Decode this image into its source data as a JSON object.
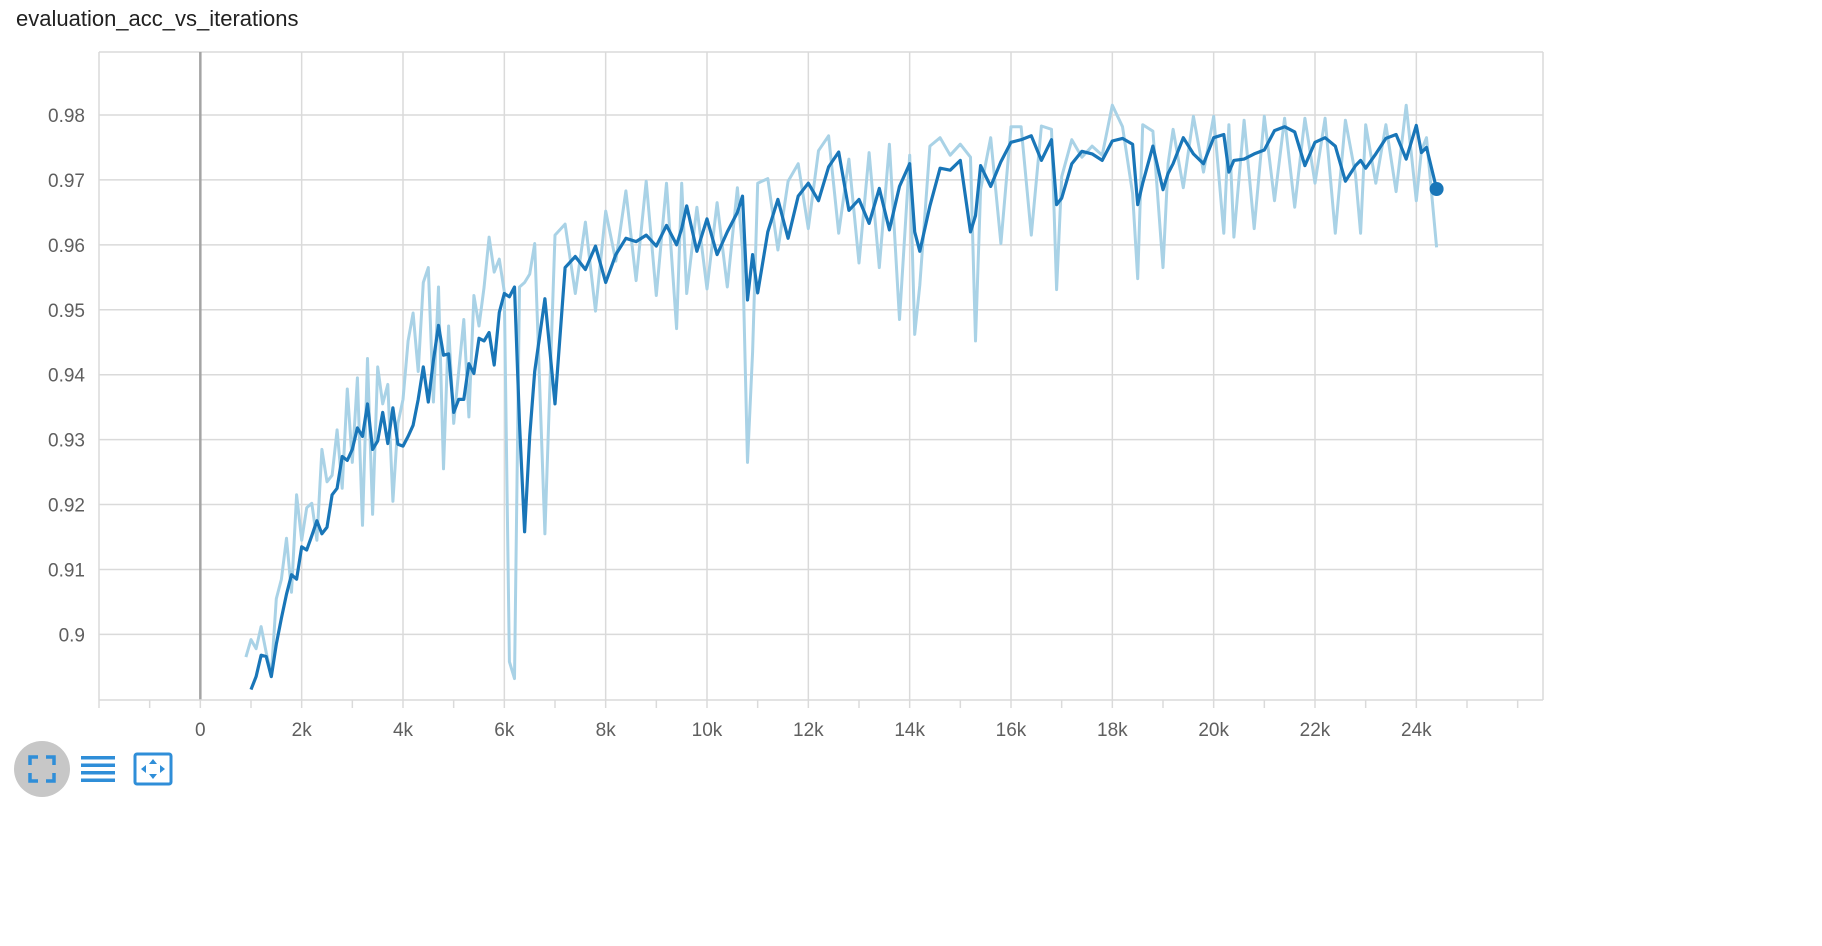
{
  "title": "evaluation_acc_vs_iterations",
  "colors": {
    "series": "#1976b8",
    "series_raw": "#a9d2e6",
    "grid": "#dadada",
    "zero_line": "#a4a4a4",
    "axis_text": "#5f5f5f",
    "toolbar_icon": "#2f8ed8",
    "toolbar_active_bg": "#c7c7c7"
  },
  "toolbar": {
    "buttons": [
      {
        "name": "fullscreen-icon",
        "active": true
      },
      {
        "name": "list-icon",
        "active": false
      },
      {
        "name": "fit-domain-icon",
        "active": false
      }
    ]
  },
  "chart_data": {
    "type": "line",
    "title": "evaluation_acc_vs_iterations",
    "xlabel": "",
    "ylabel": "",
    "xlim": [
      -2000,
      26500
    ],
    "ylim": [
      0.8899,
      0.9897
    ],
    "x_ticks": [
      0,
      2000,
      4000,
      6000,
      8000,
      10000,
      12000,
      14000,
      16000,
      18000,
      20000,
      22000,
      24000
    ],
    "x_tick_labels": [
      "0",
      "2k",
      "4k",
      "6k",
      "8k",
      "10k",
      "12k",
      "14k",
      "16k",
      "18k",
      "20k",
      "22k",
      "24k"
    ],
    "y_ticks": [
      0.9,
      0.91,
      0.92,
      0.93,
      0.94,
      0.95,
      0.96,
      0.97,
      0.98
    ],
    "y_tick_labels": [
      "0.9",
      "0.91",
      "0.92",
      "0.93",
      "0.94",
      "0.95",
      "0.96",
      "0.97",
      "0.98"
    ],
    "grid": true,
    "legend": "none",
    "series": [
      {
        "role": "smoothed",
        "x": [
          1000,
          1100,
          1200,
          1300,
          1400,
          1500,
          1600,
          1700,
          1800,
          1900,
          2000,
          2100,
          2200,
          2300,
          2400,
          2500,
          2600,
          2700,
          2800,
          2900,
          3000,
          3100,
          3200,
          3300,
          3400,
          3500,
          3600,
          3700,
          3800,
          3900,
          4000,
          4100,
          4200,
          4300,
          4400,
          4500,
          4600,
          4700,
          4800,
          4900,
          5000,
          5100,
          5200,
          5300,
          5400,
          5500,
          5600,
          5700,
          5800,
          5900,
          6000,
          6100,
          6200,
          6300,
          6400,
          6500,
          6600,
          6800,
          7000,
          7200,
          7400,
          7600,
          7800,
          8000,
          8200,
          8400,
          8600,
          8800,
          9000,
          9200,
          9400,
          9500,
          9600,
          9800,
          10000,
          10200,
          10400,
          10600,
          10700,
          10800,
          10900,
          11000,
          11200,
          11400,
          11600,
          11800,
          12000,
          12200,
          12400,
          12600,
          12800,
          13000,
          13200,
          13400,
          13600,
          13800,
          14000,
          14100,
          14200,
          14400,
          14600,
          14800,
          15000,
          15200,
          15300,
          15400,
          15600,
          15800,
          16000,
          16200,
          16400,
          16600,
          16800,
          16900,
          17000,
          17200,
          17400,
          17600,
          17800,
          18000,
          18200,
          18400,
          18500,
          18600,
          18800,
          19000,
          19100,
          19200,
          19400,
          19600,
          19800,
          20000,
          20200,
          20300,
          20400,
          20600,
          20800,
          21000,
          21200,
          21400,
          21600,
          21800,
          22000,
          22200,
          22400,
          22600,
          22800,
          22900,
          23000,
          23200,
          23400,
          23600,
          23800,
          24000,
          24100,
          24200,
          24400
        ],
        "y": [
          0.8915,
          0.8935,
          0.8968,
          0.8966,
          0.8935,
          0.8985,
          0.9025,
          0.9062,
          0.9092,
          0.9085,
          0.9135,
          0.913,
          0.9152,
          0.9175,
          0.9155,
          0.9165,
          0.9215,
          0.9225,
          0.9274,
          0.9268,
          0.9285,
          0.9318,
          0.9305,
          0.9355,
          0.9285,
          0.9298,
          0.9342,
          0.9294,
          0.9349,
          0.9293,
          0.929,
          0.9305,
          0.9322,
          0.9362,
          0.9412,
          0.9358,
          0.9422,
          0.9476,
          0.943,
          0.9432,
          0.9342,
          0.9362,
          0.9362,
          0.9417,
          0.9402,
          0.9456,
          0.9452,
          0.9465,
          0.9415,
          0.9496,
          0.9525,
          0.952,
          0.9535,
          0.9325,
          0.9158,
          0.9305,
          0.9405,
          0.9517,
          0.9355,
          0.9565,
          0.9582,
          0.9562,
          0.9598,
          0.9542,
          0.9585,
          0.961,
          0.9605,
          0.9615,
          0.9598,
          0.963,
          0.96,
          0.9625,
          0.966,
          0.959,
          0.964,
          0.9585,
          0.962,
          0.965,
          0.9675,
          0.9515,
          0.9585,
          0.9526,
          0.962,
          0.967,
          0.961,
          0.9675,
          0.9695,
          0.9668,
          0.972,
          0.9743,
          0.9653,
          0.967,
          0.9633,
          0.9687,
          0.9623,
          0.969,
          0.9725,
          0.962,
          0.959,
          0.966,
          0.9718,
          0.9715,
          0.973,
          0.962,
          0.9645,
          0.9722,
          0.969,
          0.9728,
          0.9758,
          0.9762,
          0.9768,
          0.973,
          0.9762,
          0.9662,
          0.9672,
          0.9725,
          0.9744,
          0.974,
          0.973,
          0.976,
          0.9764,
          0.9755,
          0.9662,
          0.9695,
          0.9752,
          0.9685,
          0.971,
          0.9725,
          0.9765,
          0.974,
          0.9725,
          0.9765,
          0.977,
          0.9712,
          0.973,
          0.9732,
          0.974,
          0.9746,
          0.9776,
          0.9782,
          0.9774,
          0.9722,
          0.9758,
          0.9765,
          0.9752,
          0.9698,
          0.9722,
          0.973,
          0.9718,
          0.974,
          0.9764,
          0.977,
          0.9732,
          0.9784,
          0.9742,
          0.975,
          0.9686
        ]
      },
      {
        "role": "raw",
        "x": [
          900,
          1000,
          1100,
          1200,
          1300,
          1400,
          1500,
          1600,
          1700,
          1800,
          1900,
          2000,
          2100,
          2200,
          2300,
          2400,
          2500,
          2600,
          2700,
          2800,
          2900,
          3000,
          3100,
          3200,
          3300,
          3400,
          3500,
          3600,
          3700,
          3800,
          3900,
          4000,
          4100,
          4200,
          4300,
          4400,
          4500,
          4600,
          4700,
          4800,
          4900,
          5000,
          5100,
          5200,
          5300,
          5400,
          5500,
          5600,
          5700,
          5800,
          5900,
          6000,
          6100,
          6200,
          6300,
          6400,
          6500,
          6600,
          6800,
          7000,
          7200,
          7400,
          7600,
          7800,
          8000,
          8200,
          8400,
          8600,
          8800,
          9000,
          9200,
          9400,
          9500,
          9600,
          9800,
          10000,
          10200,
          10400,
          10600,
          10700,
          10800,
          10900,
          11000,
          11200,
          11400,
          11600,
          11800,
          12000,
          12200,
          12400,
          12600,
          12800,
          13000,
          13200,
          13400,
          13600,
          13800,
          14000,
          14100,
          14200,
          14400,
          14600,
          14800,
          15000,
          15200,
          15300,
          15400,
          15600,
          15800,
          16000,
          16200,
          16400,
          16600,
          16800,
          16900,
          17000,
          17200,
          17400,
          17600,
          17800,
          18000,
          18200,
          18400,
          18500,
          18600,
          18800,
          19000,
          19100,
          19200,
          19400,
          19600,
          19800,
          20000,
          20200,
          20300,
          20400,
          20600,
          20800,
          21000,
          21200,
          21400,
          21600,
          21800,
          22000,
          22200,
          22400,
          22600,
          22800,
          22900,
          23000,
          23200,
          23400,
          23600,
          23800,
          24000,
          24100,
          24200,
          24400
        ],
        "y": [
          0.8965,
          0.8992,
          0.8978,
          0.9012,
          0.8972,
          0.8938,
          0.9055,
          0.9085,
          0.9148,
          0.9065,
          0.9215,
          0.9145,
          0.9195,
          0.9202,
          0.9145,
          0.9285,
          0.9235,
          0.9245,
          0.9315,
          0.9225,
          0.9378,
          0.9265,
          0.9395,
          0.9168,
          0.9425,
          0.9185,
          0.9412,
          0.9355,
          0.9385,
          0.9205,
          0.9325,
          0.9362,
          0.9452,
          0.9495,
          0.9405,
          0.9542,
          0.9565,
          0.9358,
          0.9535,
          0.9255,
          0.9475,
          0.9325,
          0.9405,
          0.9485,
          0.9335,
          0.9522,
          0.9475,
          0.9535,
          0.9612,
          0.9558,
          0.9578,
          0.9528,
          0.8958,
          0.8932,
          0.9535,
          0.9542,
          0.9555,
          0.9602,
          0.9155,
          0.9615,
          0.9632,
          0.9525,
          0.9635,
          0.9498,
          0.9652,
          0.9575,
          0.9683,
          0.9545,
          0.9698,
          0.9522,
          0.9695,
          0.9471,
          0.9695,
          0.9525,
          0.9658,
          0.9532,
          0.9665,
          0.9535,
          0.9688,
          0.9592,
          0.9265,
          0.9435,
          0.9695,
          0.9702,
          0.9592,
          0.9698,
          0.9725,
          0.9625,
          0.9745,
          0.9768,
          0.9618,
          0.9732,
          0.9572,
          0.9742,
          0.9565,
          0.9755,
          0.9485,
          0.9738,
          0.9462,
          0.9538,
          0.9752,
          0.9765,
          0.9738,
          0.9755,
          0.9735,
          0.9452,
          0.9685,
          0.9765,
          0.9602,
          0.9782,
          0.9782,
          0.9615,
          0.9783,
          0.9778,
          0.9531,
          0.9705,
          0.9762,
          0.9735,
          0.9752,
          0.9738,
          0.9815,
          0.9782,
          0.9679,
          0.9548,
          0.9785,
          0.9775,
          0.9565,
          0.9725,
          0.9778,
          0.9688,
          0.9798,
          0.9712,
          0.9798,
          0.9618,
          0.9785,
          0.9612,
          0.9792,
          0.9625,
          0.9798,
          0.9668,
          0.9795,
          0.9658,
          0.9795,
          0.9695,
          0.9795,
          0.9618,
          0.9792,
          0.9708,
          0.9618,
          0.9785,
          0.9695,
          0.9785,
          0.9682,
          0.9815,
          0.9668,
          0.9745,
          0.9765,
          0.9596
        ]
      }
    ]
  }
}
